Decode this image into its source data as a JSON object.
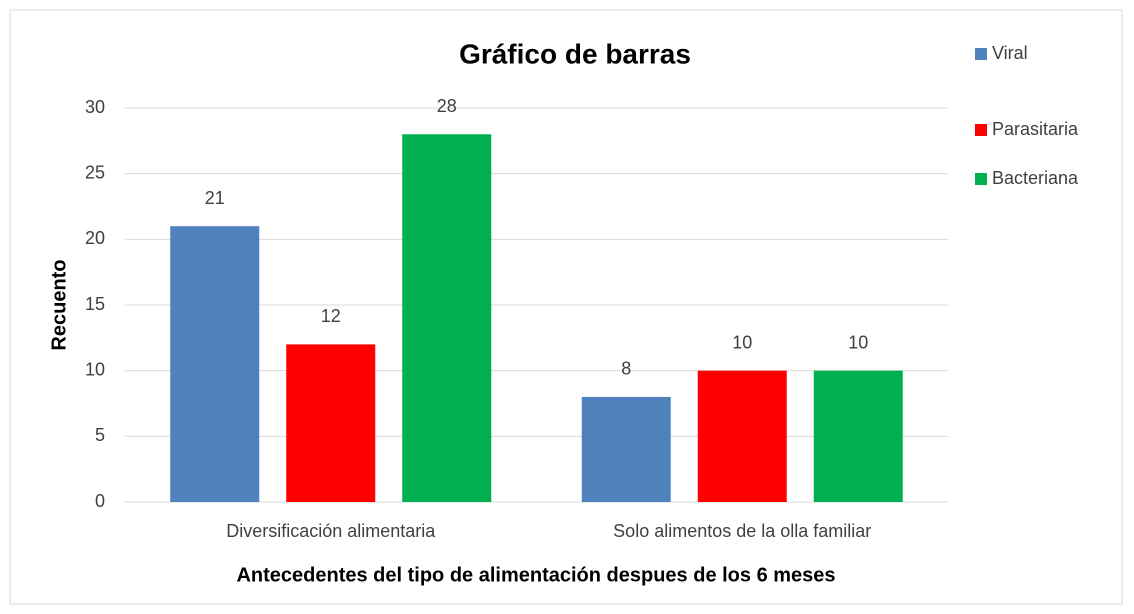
{
  "chart_data": {
    "type": "bar",
    "title": "Gráfico de barras",
    "x_label": "Antecedentes del tipo de alimentación despues de los 6 meses",
    "y_label": "Recuento",
    "categories": [
      "Diversificación alimentaria",
      "Solo alimentos de la olla familiar"
    ],
    "series": [
      {
        "name": "Viral",
        "color": "#4f81bd",
        "values": [
          21,
          8
        ]
      },
      {
        "name": "Parasitaria",
        "color": "#fe0000",
        "values": [
          12,
          10
        ]
      },
      {
        "name": "Bacteriana",
        "color": "#00b050",
        "values": [
          28,
          10
        ]
      }
    ],
    "ylim": [
      0,
      30
    ],
    "yticks": [
      0,
      5,
      10,
      15,
      20,
      25,
      30
    ],
    "grid": true,
    "legend": "right"
  }
}
